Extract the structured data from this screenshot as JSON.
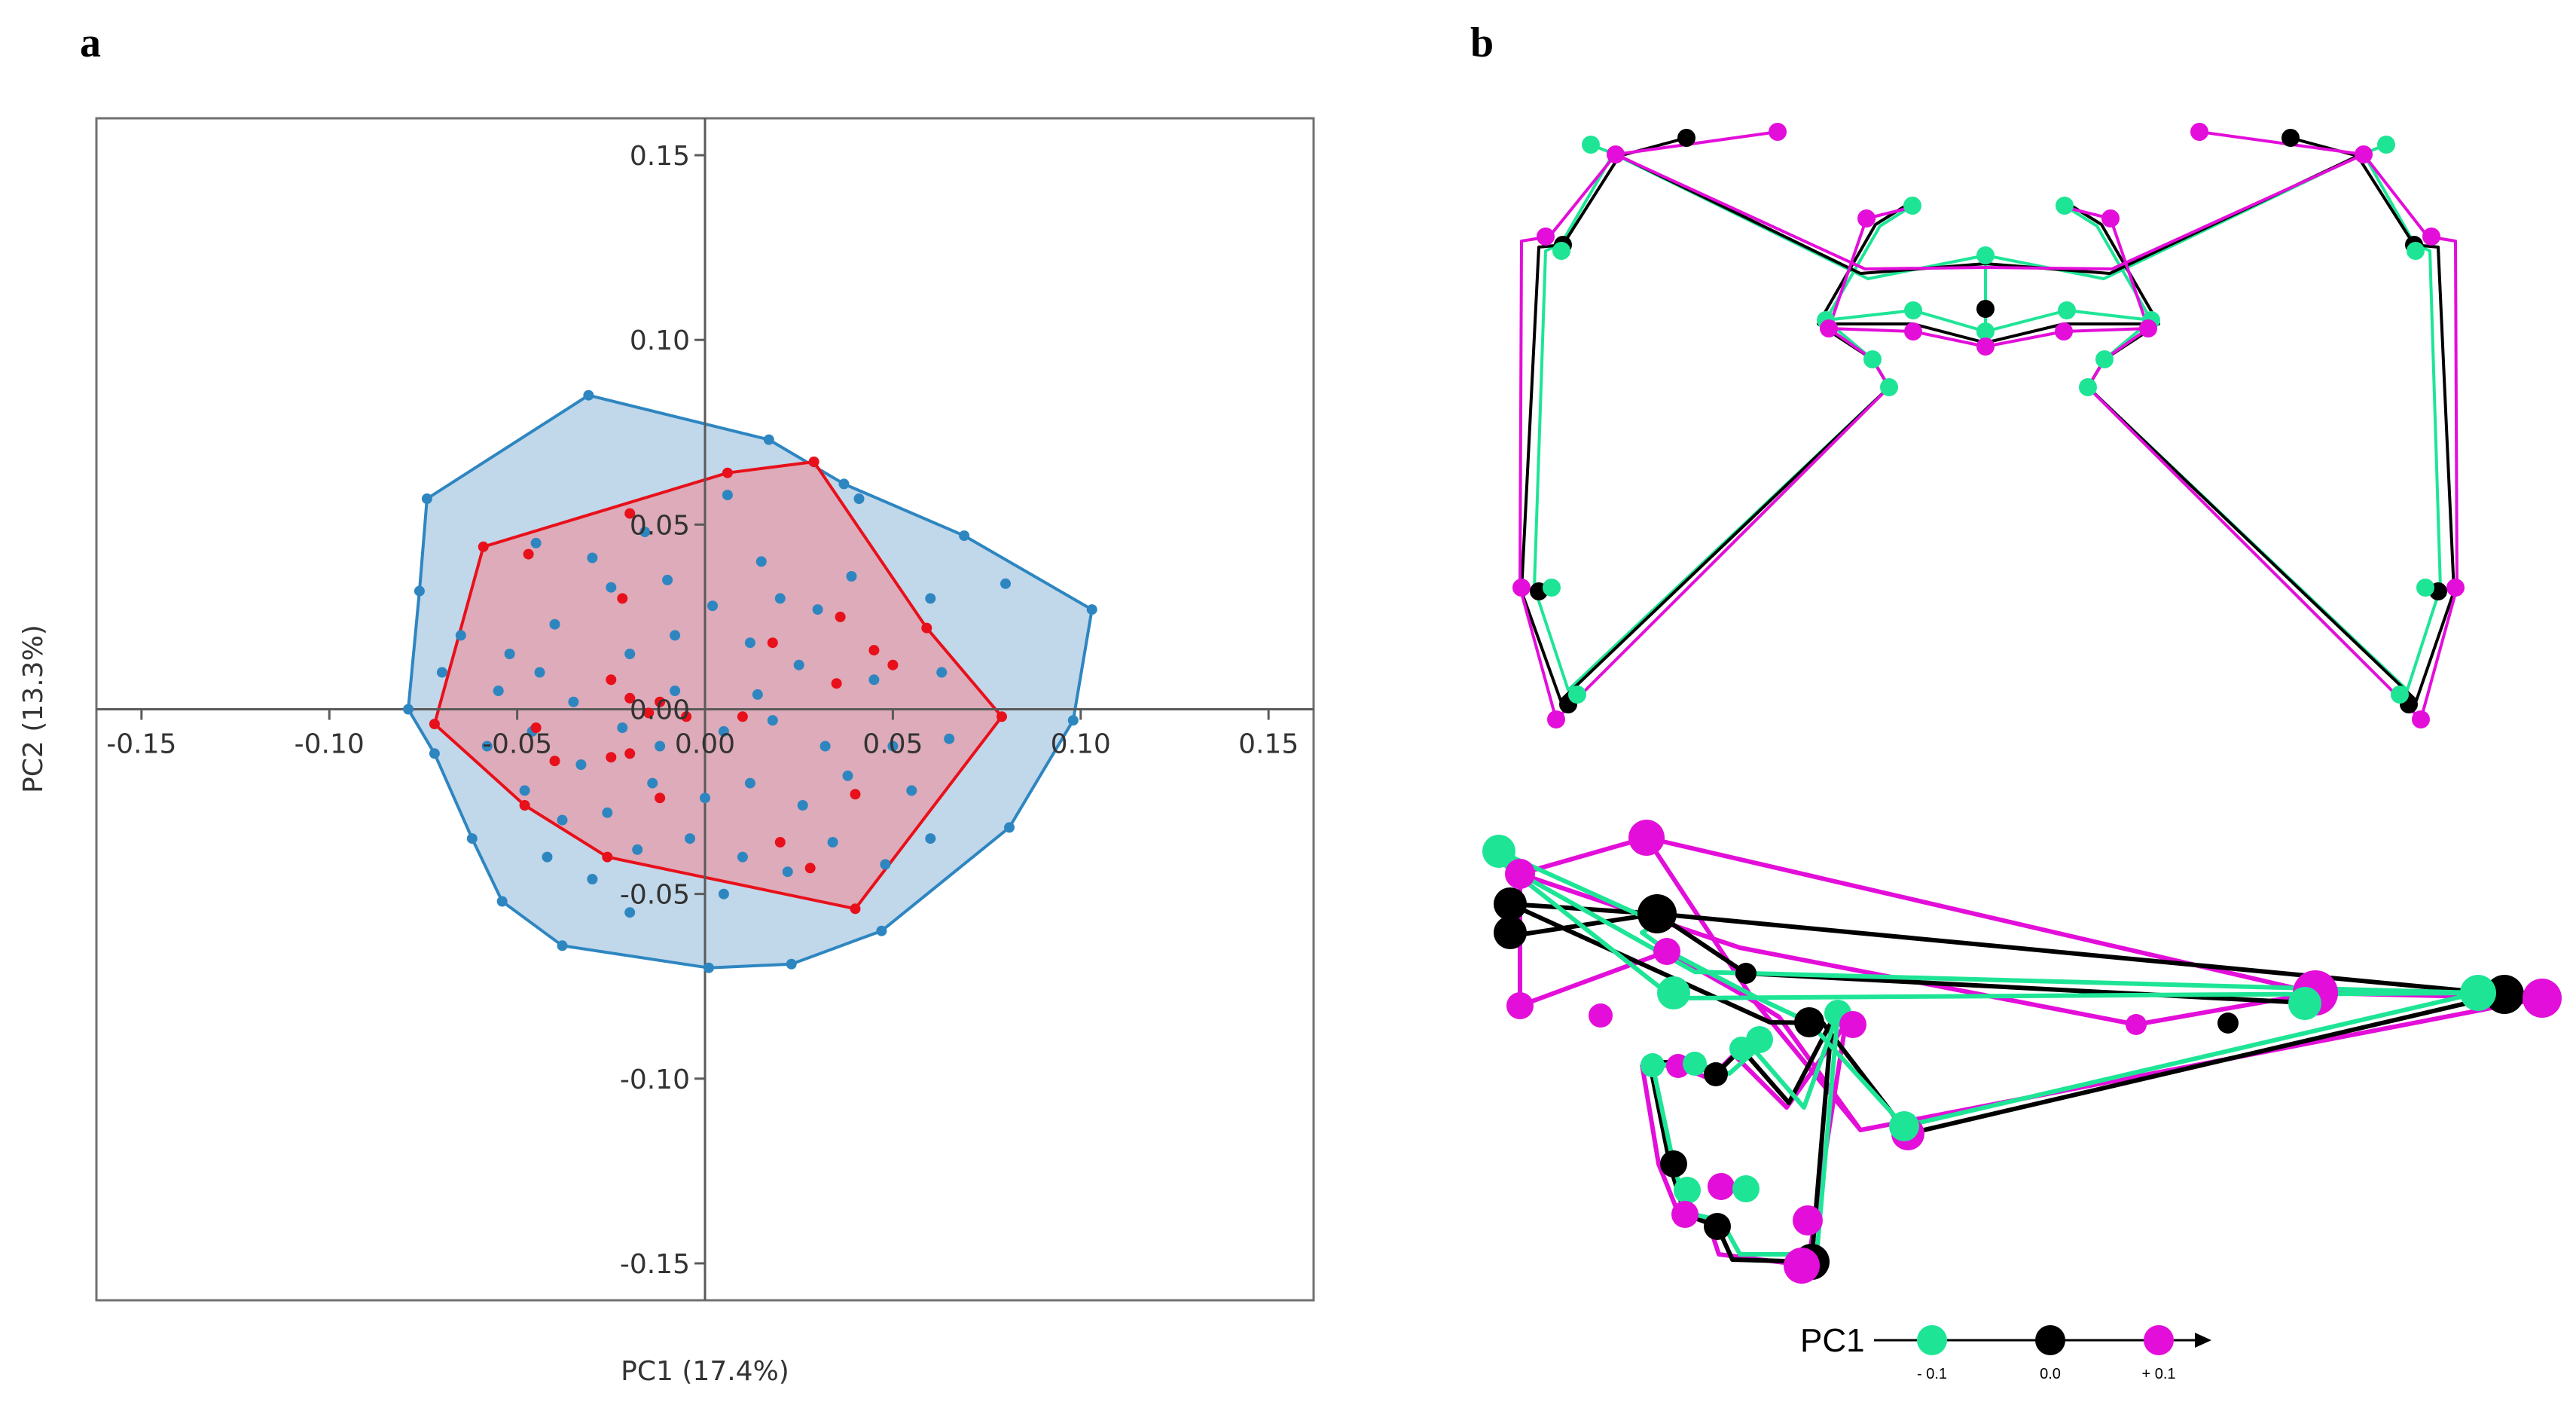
{
  "panels": {
    "a_label": "a",
    "b_label": "b"
  },
  "chart_data": [
    {
      "type": "scatter",
      "xlabel": "PC1 (17.4%)",
      "ylabel": "PC2 (13.3%)",
      "xlim": [
        -0.162,
        0.162
      ],
      "ylim": [
        -0.16,
        0.16
      ],
      "xticks": [
        -0.15,
        -0.1,
        -0.05,
        0.0,
        0.05,
        0.1,
        0.15
      ],
      "yticks": [
        0.15,
        0.1,
        0.05,
        0.0,
        -0.05,
        -0.1,
        -0.15
      ],
      "xtick_labels": [
        "-0.15",
        "-0.10",
        "-0.05",
        "0.00",
        "0.05",
        "0.10",
        "0.15"
      ],
      "ytick_labels": [
        "0.15",
        "0.10",
        "0.05",
        "0.00",
        "-0.05",
        "-0.10",
        "-0.15"
      ],
      "colors": {
        "blue": "#2e86c1",
        "red": "#e8101a"
      },
      "hulls": [
        {
          "color": "#2e86c1",
          "fill": "#a9c8e2",
          "vertices": [
            [
              -0.031,
              0.085
            ],
            [
              0.017,
              0.073
            ],
            [
              0.037,
              0.061
            ],
            [
              0.069,
              0.047
            ],
            [
              0.103,
              0.027
            ],
            [
              0.098,
              -0.003
            ],
            [
              0.081,
              -0.032
            ],
            [
              0.047,
              -0.06
            ],
            [
              0.023,
              -0.069
            ],
            [
              0.001,
              -0.07
            ],
            [
              -0.038,
              -0.064
            ],
            [
              -0.054,
              -0.052
            ],
            [
              -0.062,
              -0.035
            ],
            [
              -0.072,
              -0.012
            ],
            [
              -0.079,
              0.0
            ],
            [
              -0.076,
              0.032
            ],
            [
              -0.074,
              0.057
            ]
          ]
        },
        {
          "color": "#e8101a",
          "fill": "#e89aa6",
          "vertices": [
            [
              -0.059,
              0.044
            ],
            [
              0.006,
              0.064
            ],
            [
              0.029,
              0.067
            ],
            [
              0.059,
              0.022
            ],
            [
              0.079,
              -0.002
            ],
            [
              0.04,
              -0.054
            ],
            [
              -0.026,
              -0.04
            ],
            [
              -0.048,
              -0.026
            ],
            [
              -0.072,
              -0.004
            ]
          ]
        }
      ],
      "series": [
        {
          "color": "#2e86c1",
          "points": [
            [
              -0.031,
              0.085
            ],
            [
              0.017,
              0.073
            ],
            [
              0.037,
              0.061
            ],
            [
              0.069,
              0.047
            ],
            [
              0.103,
              0.027
            ],
            [
              0.098,
              -0.003
            ],
            [
              0.081,
              -0.032
            ],
            [
              0.047,
              -0.06
            ],
            [
              0.023,
              -0.069
            ],
            [
              0.001,
              -0.07
            ],
            [
              -0.038,
              -0.064
            ],
            [
              -0.054,
              -0.052
            ],
            [
              -0.062,
              -0.035
            ],
            [
              -0.072,
              -0.012
            ],
            [
              -0.079,
              0.0
            ],
            [
              -0.076,
              0.032
            ],
            [
              -0.074,
              0.057
            ],
            [
              0.041,
              0.057
            ],
            [
              0.08,
              0.034
            ],
            [
              -0.045,
              0.045
            ],
            [
              -0.03,
              0.041
            ],
            [
              -0.016,
              0.048
            ],
            [
              0.006,
              0.058
            ],
            [
              0.015,
              0.04
            ],
            [
              0.039,
              0.036
            ],
            [
              0.06,
              0.03
            ],
            [
              -0.065,
              0.02
            ],
            [
              -0.052,
              0.015
            ],
            [
              -0.04,
              0.023
            ],
            [
              -0.025,
              0.033
            ],
            [
              -0.01,
              0.035
            ],
            [
              0.002,
              0.028
            ],
            [
              0.02,
              0.03
            ],
            [
              0.03,
              0.027
            ],
            [
              -0.055,
              0.005
            ],
            [
              -0.044,
              0.01
            ],
            [
              -0.035,
              0.002
            ],
            [
              -0.02,
              0.015
            ],
            [
              -0.008,
              0.02
            ],
            [
              0.012,
              0.018
            ],
            [
              0.025,
              0.012
            ],
            [
              0.045,
              0.008
            ],
            [
              0.063,
              0.01
            ],
            [
              -0.058,
              -0.01
            ],
            [
              -0.046,
              -0.006
            ],
            [
              -0.033,
              -0.015
            ],
            [
              -0.022,
              -0.005
            ],
            [
              -0.012,
              -0.01
            ],
            [
              0.005,
              -0.006
            ],
            [
              0.018,
              -0.003
            ],
            [
              0.032,
              -0.01
            ],
            [
              0.05,
              -0.01
            ],
            [
              0.065,
              -0.008
            ],
            [
              -0.048,
              -0.022
            ],
            [
              -0.038,
              -0.03
            ],
            [
              -0.026,
              -0.028
            ],
            [
              -0.014,
              -0.02
            ],
            [
              0.0,
              -0.024
            ],
            [
              0.012,
              -0.02
            ],
            [
              0.026,
              -0.026
            ],
            [
              0.038,
              -0.018
            ],
            [
              0.055,
              -0.022
            ],
            [
              -0.042,
              -0.04
            ],
            [
              -0.03,
              -0.046
            ],
            [
              -0.018,
              -0.038
            ],
            [
              -0.004,
              -0.035
            ],
            [
              0.01,
              -0.04
            ],
            [
              0.022,
              -0.044
            ],
            [
              0.034,
              -0.036
            ],
            [
              0.048,
              -0.042
            ],
            [
              -0.02,
              -0.055
            ],
            [
              0.005,
              -0.05
            ],
            [
              -0.07,
              0.01
            ],
            [
              0.06,
              -0.035
            ],
            [
              -0.008,
              0.005
            ],
            [
              0.014,
              0.004
            ]
          ]
        },
        {
          "color": "#e8101a",
          "points": [
            [
              -0.059,
              0.044
            ],
            [
              0.006,
              0.064
            ],
            [
              0.029,
              0.067
            ],
            [
              0.059,
              0.022
            ],
            [
              0.079,
              -0.002
            ],
            [
              0.04,
              -0.054
            ],
            [
              -0.026,
              -0.04
            ],
            [
              -0.048,
              -0.026
            ],
            [
              -0.072,
              -0.004
            ],
            [
              -0.047,
              0.042
            ],
            [
              -0.02,
              0.053
            ],
            [
              -0.022,
              0.03
            ],
            [
              -0.025,
              0.008
            ],
            [
              -0.02,
              0.003
            ],
            [
              -0.015,
              -0.001
            ],
            [
              -0.012,
              0.002
            ],
            [
              -0.005,
              -0.002
            ],
            [
              0.01,
              -0.002
            ],
            [
              0.018,
              0.018
            ],
            [
              0.036,
              0.025
            ],
            [
              0.045,
              0.016
            ],
            [
              0.05,
              0.012
            ],
            [
              0.035,
              0.007
            ],
            [
              -0.04,
              -0.014
            ],
            [
              -0.025,
              -0.013
            ],
            [
              -0.02,
              -0.012
            ],
            [
              -0.012,
              -0.024
            ],
            [
              0.04,
              -0.023
            ],
            [
              0.028,
              -0.043
            ],
            [
              0.02,
              -0.036
            ],
            [
              -0.045,
              -0.005
            ]
          ]
        }
      ]
    },
    {
      "type": "other",
      "title": "",
      "legend": {
        "title": "PC1",
        "entries": [
          {
            "label": "- 0.1",
            "color": "#1ee596"
          },
          {
            "label": "0.0",
            "color": "#000000"
          },
          {
            "label": "+ 0.1",
            "color": "#e30ed9"
          }
        ]
      }
    }
  ]
}
